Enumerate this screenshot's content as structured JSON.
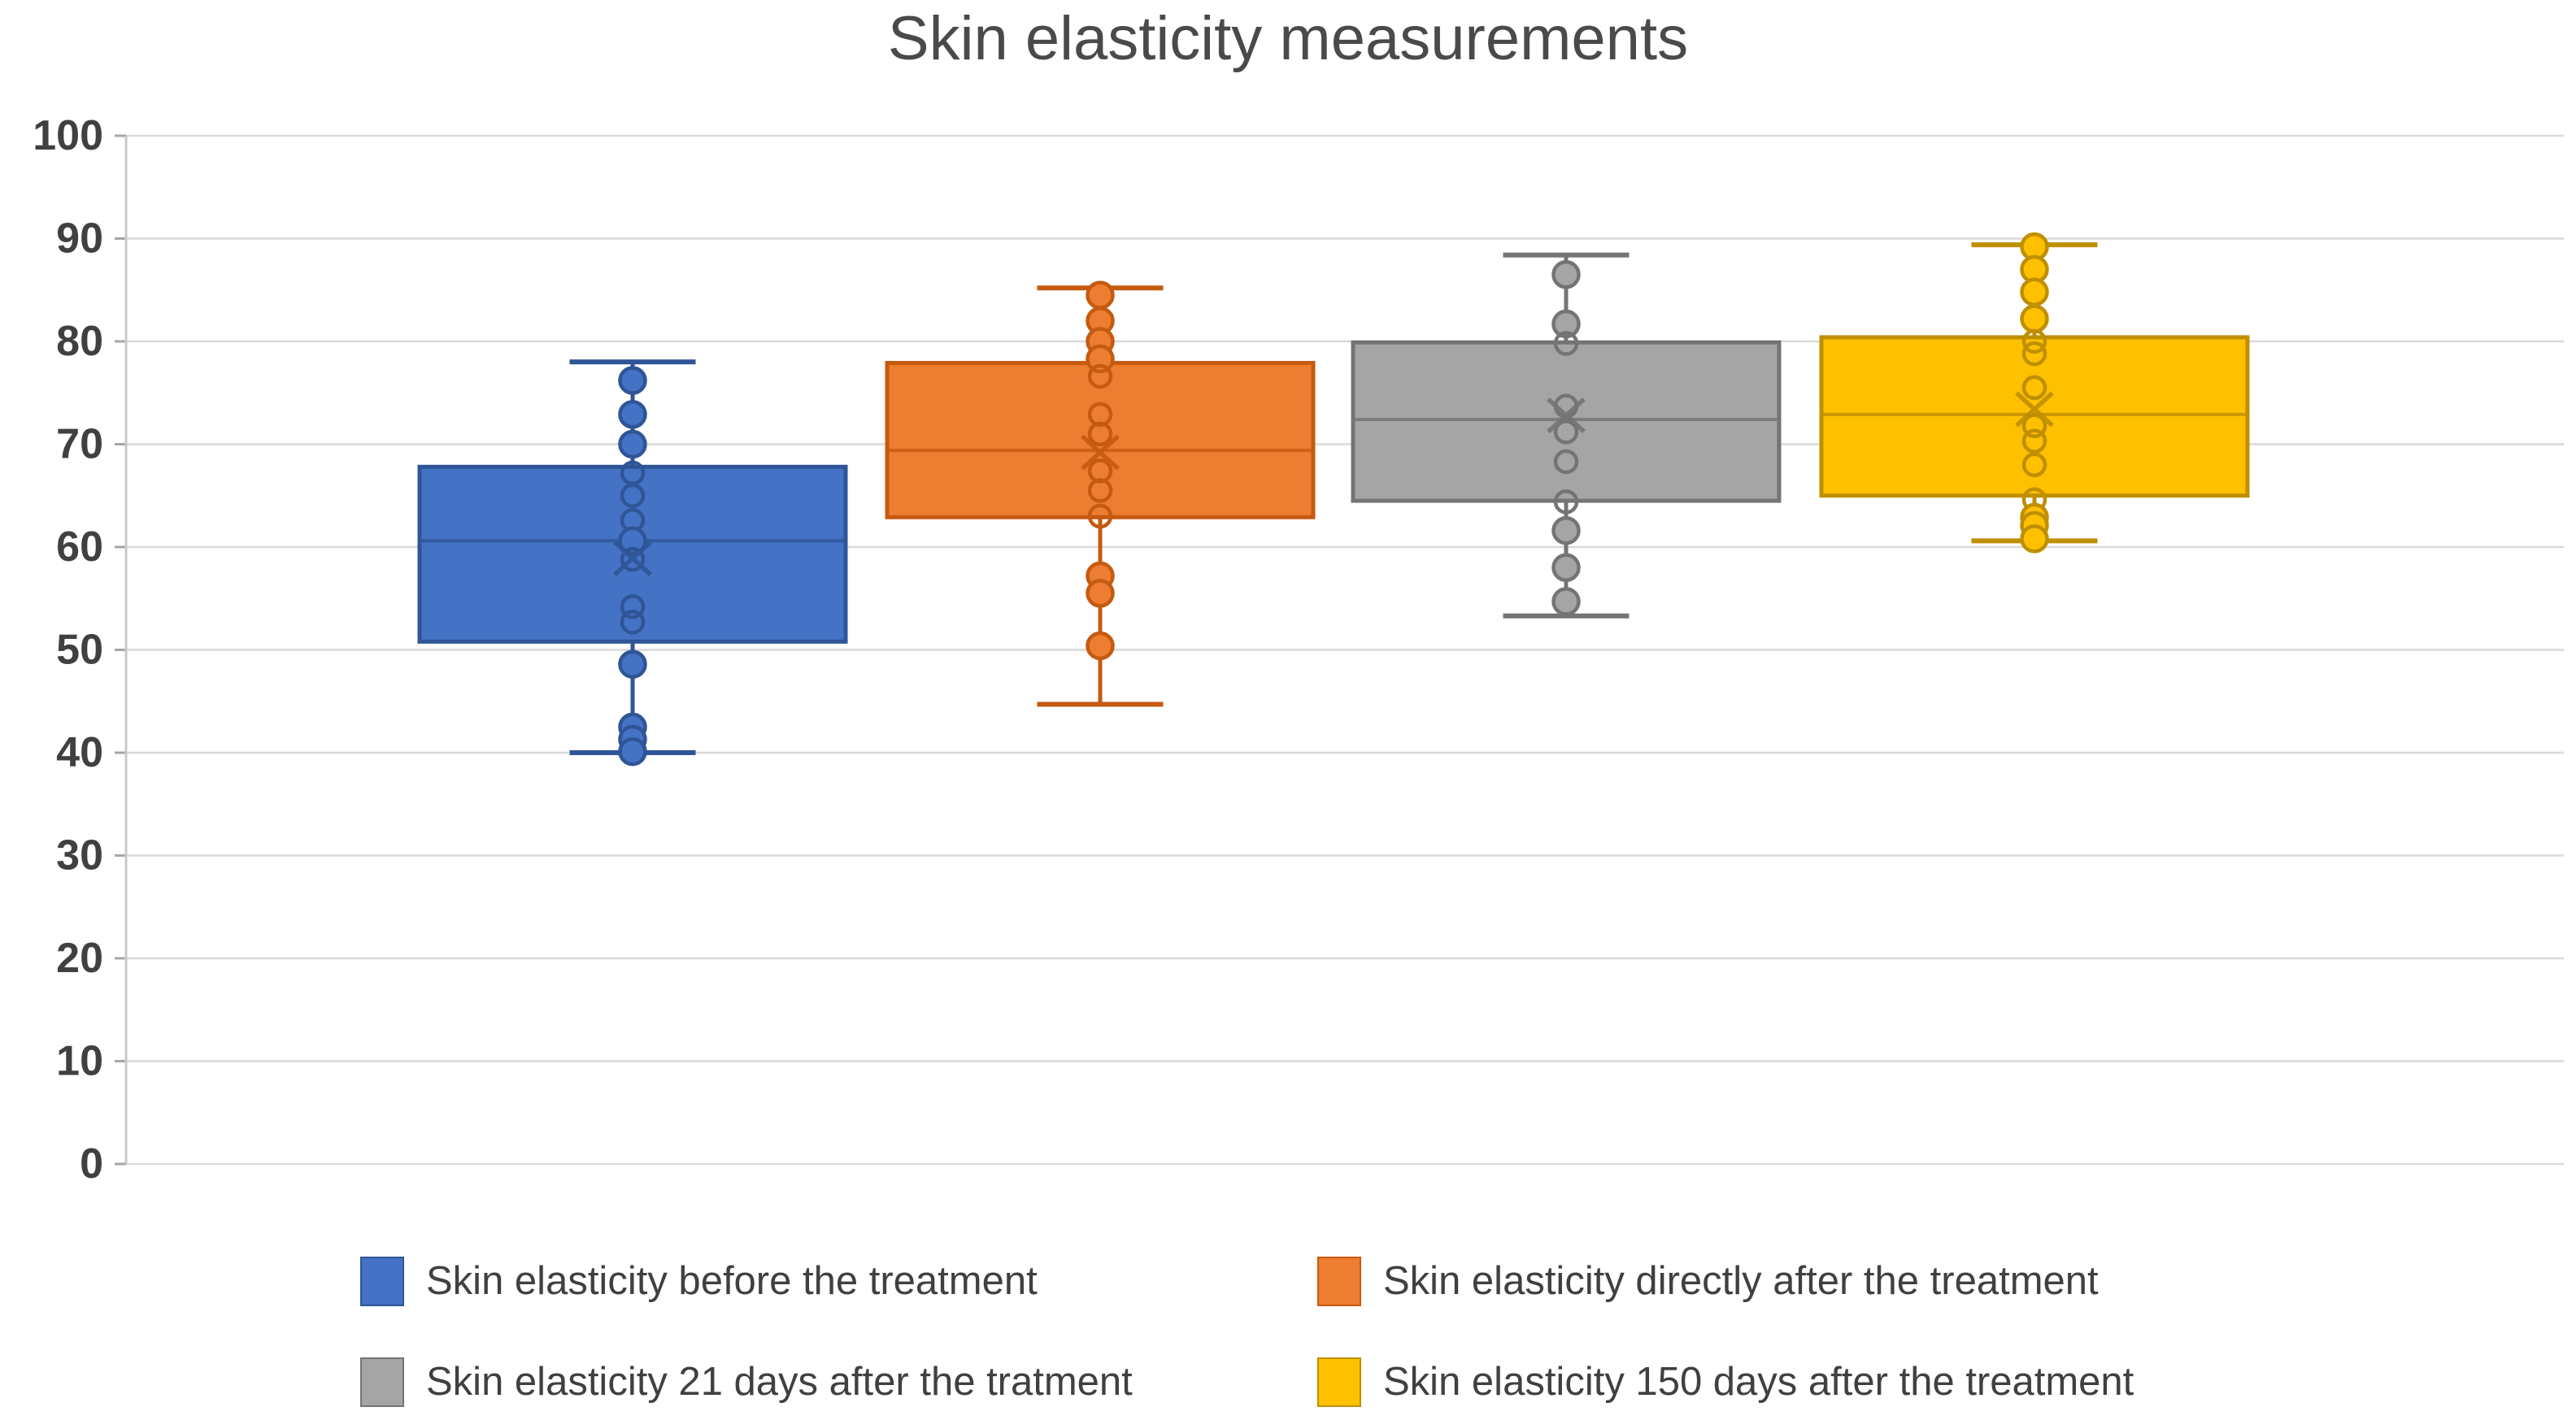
{
  "page": {
    "background": "#FFFFFF",
    "grid_color": "#D9D9D9",
    "axis_line_color": "#C9C9C9",
    "text_color": "#404040",
    "title_color": "#4a4a4a"
  },
  "chart_data": {
    "type": "box",
    "title": "Skin elasticity measurements",
    "xlabel": "",
    "ylabel": "",
    "grid": true,
    "legend_position": "bottom",
    "y_axis": {
      "min": 0,
      "max": 100,
      "step": 10,
      "tick_labels": [
        "0",
        "10",
        "20",
        "30",
        "40",
        "50",
        "60",
        "70",
        "80",
        "90",
        "100"
      ]
    },
    "series": [
      {
        "name": "Skin elasticity before the treatment",
        "fill": "#4472C4",
        "line": "#2F5597",
        "box": {
          "whisker_low": 40.0,
          "q1": 50.8,
          "median": 60.6,
          "q3": 67.8,
          "whisker_high": 78.0,
          "mean": 58.9
        },
        "points": [
          {
            "value": 76.2,
            "style": "filled"
          },
          {
            "value": 72.9,
            "style": "filled"
          },
          {
            "value": 70.0,
            "style": "filled"
          },
          {
            "value": 67.2,
            "style": "hollow"
          },
          {
            "value": 65.0,
            "style": "hollow"
          },
          {
            "value": 62.6,
            "style": "hollow"
          },
          {
            "value": 60.6,
            "style": "filled"
          },
          {
            "value": 58.8,
            "style": "hollow"
          },
          {
            "value": 54.2,
            "style": "hollow"
          },
          {
            "value": 52.7,
            "style": "hollow"
          },
          {
            "value": 48.6,
            "style": "filled"
          },
          {
            "value": 42.5,
            "style": "filled"
          },
          {
            "value": 41.3,
            "style": "filled"
          },
          {
            "value": 40.1,
            "style": "filled"
          }
        ]
      },
      {
        "name": "Skin elasticity directly after the treatment",
        "fill": "#ED7D31",
        "line": "#C55A11",
        "box": {
          "whisker_low": 44.7,
          "q1": 62.9,
          "median": 69.4,
          "q3": 77.9,
          "whisker_high": 85.2,
          "mean": 69.2
        },
        "points": [
          {
            "value": 84.5,
            "style": "filled"
          },
          {
            "value": 82.0,
            "style": "filled"
          },
          {
            "value": 80.0,
            "style": "filled"
          },
          {
            "value": 78.3,
            "style": "filled"
          },
          {
            "value": 76.6,
            "style": "hollow"
          },
          {
            "value": 72.9,
            "style": "hollow"
          },
          {
            "value": 71.0,
            "style": "hollow"
          },
          {
            "value": 67.4,
            "style": "hollow"
          },
          {
            "value": 65.5,
            "style": "hollow"
          },
          {
            "value": 63.0,
            "style": "hollow"
          },
          {
            "value": 57.2,
            "style": "filled"
          },
          {
            "value": 55.5,
            "style": "filled"
          },
          {
            "value": 50.4,
            "style": "filled"
          }
        ]
      },
      {
        "name": "Skin elasticity 21 days after the tratment",
        "fill": "#A5A5A5",
        "line": "#747474",
        "box": {
          "whisker_low": 53.3,
          "q1": 64.5,
          "median": 72.4,
          "q3": 79.9,
          "whisker_high": 88.4,
          "mean": 72.8
        },
        "points": [
          {
            "value": 86.5,
            "style": "filled"
          },
          {
            "value": 81.7,
            "style": "filled"
          },
          {
            "value": 79.8,
            "style": "hollow"
          },
          {
            "value": 73.7,
            "style": "hollow"
          },
          {
            "value": 71.2,
            "style": "hollow"
          },
          {
            "value": 68.3,
            "style": "hollow"
          },
          {
            "value": 64.4,
            "style": "hollow"
          },
          {
            "value": 61.6,
            "style": "filled"
          },
          {
            "value": 58.0,
            "style": "filled"
          },
          {
            "value": 54.7,
            "style": "filled"
          }
        ]
      },
      {
        "name": "Skin elasticity 150 days after the treatment",
        "fill": "#FFC000",
        "line": "#BF8F00",
        "box": {
          "whisker_low": 60.6,
          "q1": 65.0,
          "median": 72.9,
          "q3": 80.4,
          "whisker_high": 89.4,
          "mean": 73.4
        },
        "points": [
          {
            "value": 89.2,
            "style": "filled"
          },
          {
            "value": 87.0,
            "style": "filled"
          },
          {
            "value": 84.8,
            "style": "filled"
          },
          {
            "value": 82.2,
            "style": "filled"
          },
          {
            "value": 80.0,
            "style": "hollow"
          },
          {
            "value": 78.8,
            "style": "hollow"
          },
          {
            "value": 75.5,
            "style": "hollow"
          },
          {
            "value": 71.8,
            "style": "hollow"
          },
          {
            "value": 70.3,
            "style": "hollow"
          },
          {
            "value": 68.0,
            "style": "hollow"
          },
          {
            "value": 64.6,
            "style": "hollow"
          },
          {
            "value": 62.9,
            "style": "filled"
          },
          {
            "value": 62.1,
            "style": "filled"
          },
          {
            "value": 60.8,
            "style": "filled"
          }
        ]
      }
    ]
  }
}
